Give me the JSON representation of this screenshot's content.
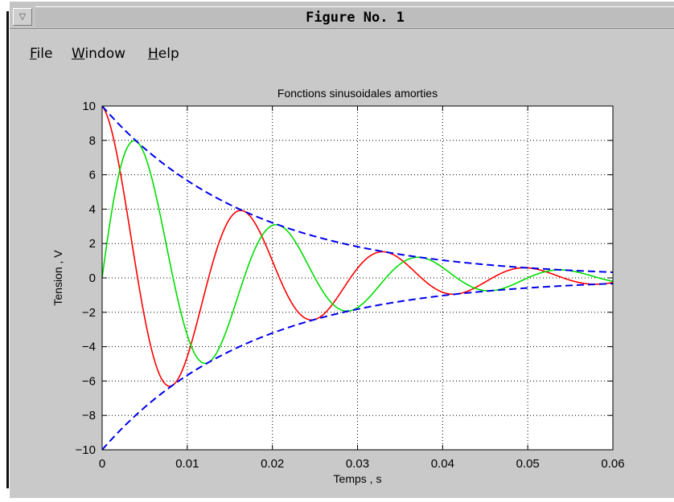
{
  "window": {
    "title": "Figure No. 1"
  },
  "menu": [
    {
      "first": "F",
      "rest": "ile"
    },
    {
      "first": "W",
      "rest": "indow"
    },
    {
      "first": "H",
      "rest": "elp"
    }
  ],
  "chart_data": {
    "type": "line",
    "title": "Fonctions sinusoidales amorties",
    "xlabel": "Temps , s",
    "ylabel": "Tension , V",
    "xlim": [
      0,
      0.06
    ],
    "ylim": [
      -10,
      10
    ],
    "xticks": [
      0,
      0.01,
      0.02,
      0.03,
      0.04,
      0.05,
      0.06
    ],
    "xtick_labels": [
      "0",
      "0.01",
      "0.02",
      "0.03",
      "0.04",
      "0.05",
      "0.06"
    ],
    "yticks": [
      -10,
      -8,
      -6,
      -4,
      -2,
      0,
      2,
      4,
      6,
      8,
      10
    ],
    "ytick_labels": [
      "−10",
      "−8",
      "−6",
      "−4",
      "−2",
      "0",
      "2",
      "4",
      "6",
      "8",
      "10"
    ],
    "grid": true,
    "series": [
      {
        "color": "#ff0000",
        "style": "solid",
        "amplitude": 10,
        "decay_time": 0.0176,
        "frequency_hz": 60,
        "phase": "cos",
        "x": [
          0,
          0.004,
          0.0083,
          0.0125,
          0.0167,
          0.0208,
          0.025,
          0.0292,
          0.0333,
          0.0375,
          0.0417,
          0.0458,
          0.05,
          0.0542,
          0.0583,
          0.06
        ],
        "y": [
          10,
          0,
          -6.2,
          0,
          3.8,
          0,
          -2.3,
          0,
          1.4,
          0,
          -0.9,
          0,
          0.6,
          0,
          -0.3,
          -0.3
        ]
      },
      {
        "color": "#00dd00",
        "style": "solid",
        "amplitude": 10,
        "decay_time": 0.0176,
        "frequency_hz": 60,
        "phase": "sin",
        "x": [
          0,
          0.0038,
          0.0083,
          0.0122,
          0.0167,
          0.0205,
          0.025,
          0.0288,
          0.0333,
          0.0372,
          0.0417,
          0.0455,
          0.05,
          0.0538,
          0.0583,
          0.06
        ],
        "y": [
          0,
          7.9,
          0,
          -4.8,
          0,
          2.9,
          0,
          -1.8,
          0,
          1.1,
          0,
          -0.7,
          0,
          0.4,
          0,
          -0.1
        ]
      },
      {
        "color": "#0000ee",
        "style": "dashed",
        "amplitude": 10,
        "decay_time": 0.0176,
        "envelope": "upper",
        "x": [
          0,
          0.01,
          0.02,
          0.03,
          0.04,
          0.05,
          0.06
        ],
        "y": [
          10,
          5.7,
          3.2,
          1.8,
          1.0,
          0.6,
          0.3
        ]
      },
      {
        "color": "#0000ee",
        "style": "dashed",
        "amplitude": -10,
        "decay_time": 0.0176,
        "envelope": "lower",
        "x": [
          0,
          0.01,
          0.02,
          0.03,
          0.04,
          0.05,
          0.06
        ],
        "y": [
          -10,
          -5.7,
          -3.2,
          -1.8,
          -1.0,
          -0.6,
          -0.3
        ]
      }
    ]
  }
}
